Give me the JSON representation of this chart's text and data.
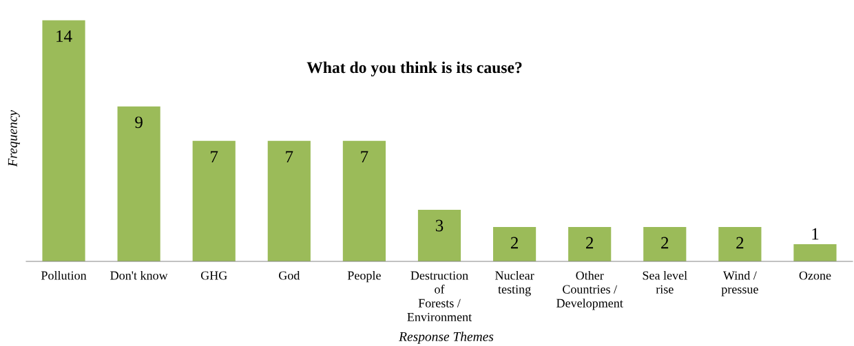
{
  "chart_data": {
    "type": "bar",
    "title": "What do you think is its cause?",
    "xlabel": "Response Themes",
    "ylabel": "Frequency",
    "categories": [
      "Pollution",
      "Don't know",
      "GHG",
      "God",
      "People",
      "Destruction\nof\nForests /\nEnvironment",
      "Nuclear\ntesting",
      "Other\nCountries /\nDevelopment",
      "Sea level\nrise",
      "Wind /\npressue",
      "Ozone"
    ],
    "values": [
      14,
      9,
      7,
      7,
      7,
      3,
      2,
      2,
      2,
      2,
      1
    ],
    "color": "#9bbb59",
    "data_labels": true,
    "grid": false,
    "legend": false
  }
}
